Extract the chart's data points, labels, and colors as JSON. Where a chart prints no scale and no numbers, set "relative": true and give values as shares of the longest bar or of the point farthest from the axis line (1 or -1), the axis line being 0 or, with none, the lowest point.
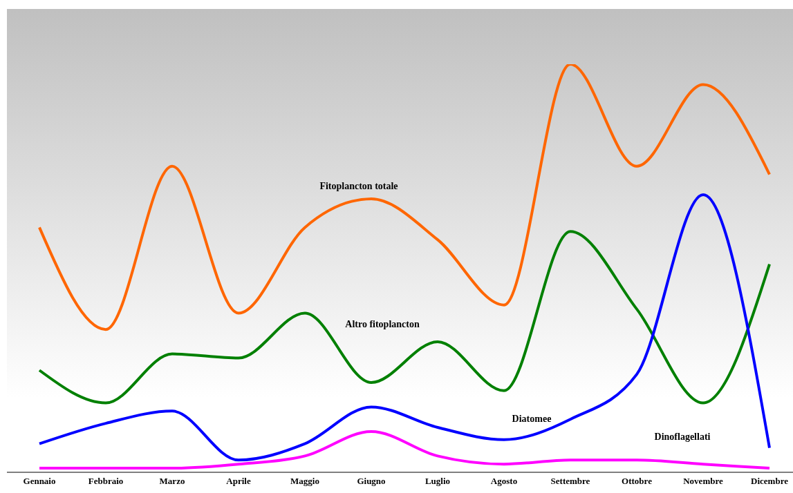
{
  "chart_data": {
    "type": "line",
    "relative": true,
    "categories": [
      "Gennaio",
      "Febbraio",
      "Marzo",
      "Aprile",
      "Maggio",
      "Giugno",
      "Luglio",
      "Agosto",
      "Settembre",
      "Ottobre",
      "Novembre",
      "Dicembre"
    ],
    "series": [
      {
        "name": "Fitoplancton totale",
        "color": "#ff6600",
        "values": [
          0.6,
          0.35,
          0.75,
          0.39,
          0.6,
          0.67,
          0.57,
          0.41,
          1,
          0.75,
          0.95,
          0.73
        ]
      },
      {
        "name": "Altro fitoplancton",
        "color": "#008000",
        "values": [
          0.25,
          0.17,
          0.29,
          0.28,
          0.39,
          0.22,
          0.32,
          0.2,
          0.59,
          0.4,
          0.17,
          0.51
        ]
      },
      {
        "name": "Diatomee",
        "color": "#0000ff",
        "values": [
          0.07,
          0.12,
          0.15,
          0.03,
          0.07,
          0.16,
          0.11,
          0.08,
          0.13,
          0.24,
          0.68,
          0.06
        ]
      },
      {
        "name": "Dinoflagellati",
        "color": "#ff00ff",
        "values": [
          0.01,
          0.01,
          0.01,
          0.02,
          0.04,
          0.1,
          0.04,
          0.02,
          0.03,
          0.03,
          0.02,
          0.01
        ]
      }
    ],
    "marker": "none",
    "legend": false,
    "grid": false
  }
}
